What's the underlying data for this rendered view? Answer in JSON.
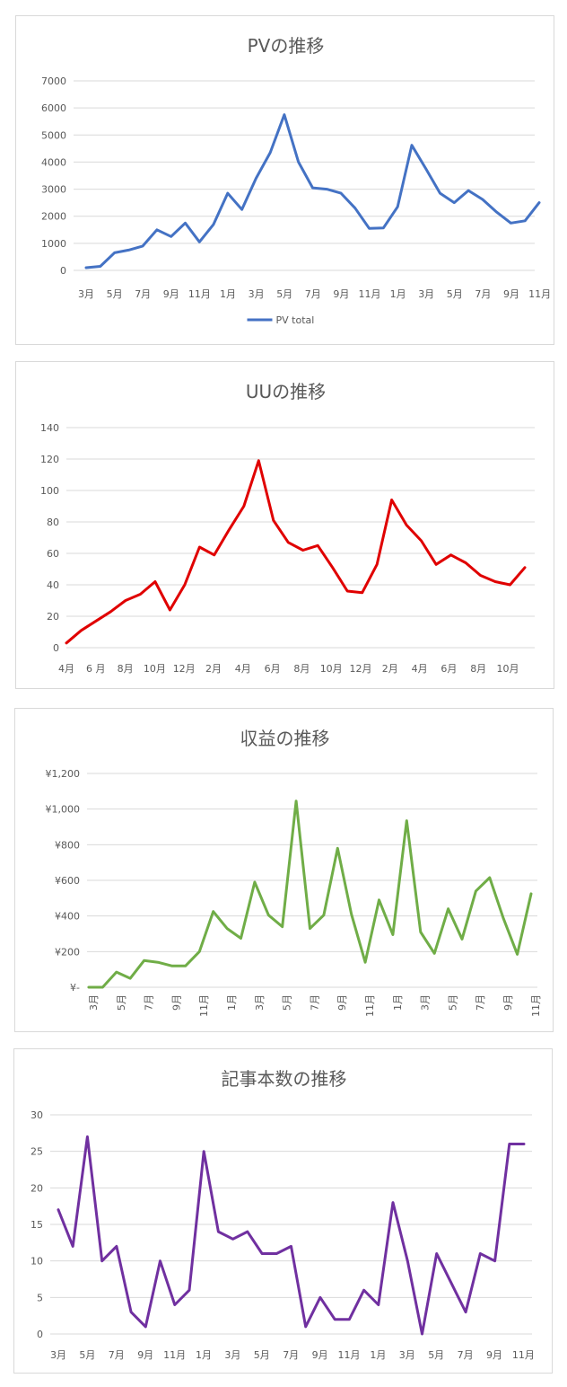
{
  "charts": [
    {
      "title": "PVの推移",
      "legend": "PV total",
      "color": "#4472C4",
      "yticks": [
        "0",
        "1000",
        "2000",
        "3000",
        "4000",
        "5000",
        "6000",
        "7000"
      ],
      "xticks": [
        "3月",
        "5月",
        "7月",
        "9月",
        "11月",
        "1月",
        "3月",
        "5月",
        "7月",
        "9月",
        "11月",
        "1月",
        "3月",
        "5月",
        "7月",
        "9月",
        "11月"
      ]
    },
    {
      "title": "UUの推移",
      "color": "#E00000",
      "yticks": [
        "0",
        "20",
        "40",
        "60",
        "80",
        "100",
        "120",
        "140"
      ],
      "xticks": [
        "4月",
        "6 月",
        "8月",
        "10月",
        "12月",
        "2月",
        "4月",
        "6月",
        "8月",
        "10月",
        "12月",
        "2月",
        "4月",
        "6月",
        "8月",
        "10月"
      ]
    },
    {
      "title": "収益の推移",
      "color": "#70AD47",
      "yticks": [
        "¥-",
        "¥200",
        "¥400",
        "¥600",
        "¥800",
        "¥1,000",
        "¥1,200"
      ],
      "xticks": [
        "3月",
        "5月",
        "7月",
        "9月",
        "11月",
        "1月",
        "3月",
        "5月",
        "7月",
        "9月",
        "11月",
        "1月",
        "3月",
        "5月",
        "7月",
        "9月",
        "11月"
      ]
    },
    {
      "title": "記事本数の推移",
      "color": "#7030A0",
      "yticks": [
        "0",
        "5",
        "10",
        "15",
        "20",
        "25",
        "30"
      ],
      "xticks": [
        "3月",
        "5月",
        "7月",
        "9月",
        "11月",
        "1月",
        "3月",
        "5月",
        "7月",
        "9月",
        "11月",
        "1月",
        "3月",
        "5月",
        "7月",
        "9月",
        "11月"
      ]
    }
  ],
  "chart_data": [
    {
      "type": "line",
      "title": "PVの推移",
      "ylim": [
        0,
        7000
      ],
      "grid": true,
      "legend_position": "bottom",
      "series": [
        {
          "name": "PV total",
          "values": [
            100,
            150,
            650,
            750,
            900,
            1500,
            1250,
            1750,
            1050,
            1700,
            2850,
            2250,
            3400,
            4350,
            5750,
            4000,
            3050,
            3000,
            2850,
            2300,
            1550,
            1570,
            2350,
            4620,
            3750,
            2850,
            2500,
            2950,
            2620,
            2150,
            1750,
            1830,
            2500
          ]
        }
      ]
    },
    {
      "type": "line",
      "title": "UUの推移",
      "ylim": [
        0,
        140
      ],
      "grid": true,
      "series": [
        {
          "values": [
            3,
            11,
            17,
            23,
            30,
            34,
            42,
            24,
            40,
            64,
            59,
            75,
            90,
            119,
            81,
            67,
            62,
            65,
            51,
            36,
            35,
            53,
            94,
            78,
            68,
            53,
            59,
            54,
            46,
            42,
            40,
            51
          ]
        }
      ]
    },
    {
      "type": "line",
      "title": "収益の推移",
      "ylim": [
        0,
        1200
      ],
      "grid": true,
      "series": [
        {
          "values": [
            0,
            0,
            85,
            50,
            150,
            140,
            120,
            120,
            200,
            425,
            330,
            275,
            590,
            405,
            340,
            1045,
            330,
            405,
            780,
            410,
            140,
            490,
            295,
            935,
            310,
            190,
            440,
            270,
            540,
            615,
            385,
            185,
            525
          ]
        }
      ]
    },
    {
      "type": "line",
      "title": "記事本数の推移",
      "ylim": [
        0,
        30
      ],
      "grid": true,
      "series": [
        {
          "values": [
            17,
            12,
            27,
            10,
            12,
            3,
            1,
            10,
            4,
            6,
            25,
            14,
            13,
            14,
            11,
            11,
            12,
            1,
            5,
            2,
            2,
            6,
            4,
            18,
            10,
            0,
            11,
            7,
            3,
            11,
            10,
            26,
            26
          ]
        }
      ]
    }
  ]
}
